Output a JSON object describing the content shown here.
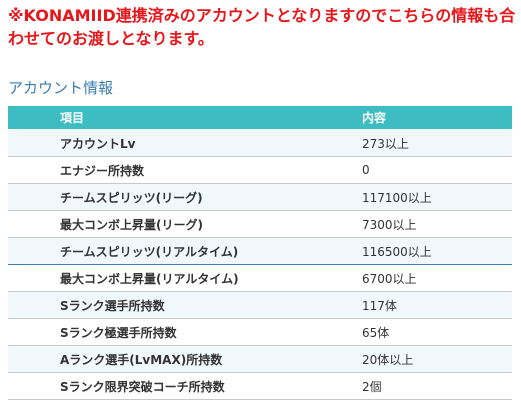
{
  "notice": {
    "text": "※KONAMIID連携済みのアカウントとなりますのでこちらの情報も合わせてのお渡しとなります。"
  },
  "account_section": {
    "title": "アカウント情報",
    "columns": {
      "item": "項目",
      "value": "内容"
    },
    "rows": [
      {
        "item": "アカウントLv",
        "value": "273以上"
      },
      {
        "item": "エナジー所持数",
        "value": "0"
      },
      {
        "item": "チームスピリッツ(リーグ)",
        "value": "117100以上"
      },
      {
        "item": "最大コンボ上昇量(リーグ)",
        "value": "7300以上"
      },
      {
        "item": "チームスピリッツ(リアルタイム)",
        "value": "116500以上"
      },
      {
        "item": "最大コンボ上昇量(リアルタイム)",
        "value": "6700以上"
      },
      {
        "item": "Sランク選手所持数",
        "value": "117体"
      },
      {
        "item": "Sランク極選手所持数",
        "value": "65体"
      },
      {
        "item": "Aランク選手(LvMAX)所持数",
        "value": "20体以上"
      },
      {
        "item": "Sランク限界突破コーチ所持数",
        "value": "2個"
      }
    ]
  }
}
